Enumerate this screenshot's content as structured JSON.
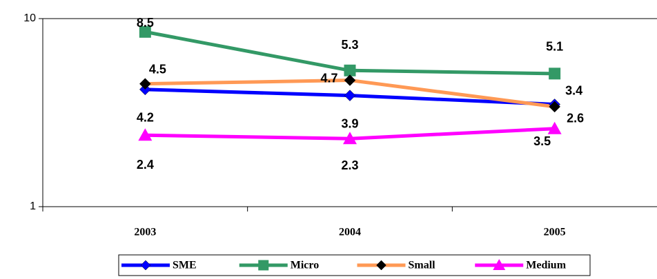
{
  "chart_data": {
    "type": "line",
    "categories": [
      "2003",
      "2004",
      "2005"
    ],
    "series": [
      {
        "name": "SME",
        "color": "#0000ff",
        "marker": "diamond",
        "marker_color": "#0000ff",
        "values": [
          4.2,
          3.9,
          3.5
        ]
      },
      {
        "name": "Micro",
        "color": "#339966",
        "marker": "square",
        "marker_color": "#339966",
        "values": [
          8.5,
          5.3,
          5.1
        ]
      },
      {
        "name": "Small",
        "color": "#ff9955",
        "marker": "diamond",
        "marker_color": "#000000",
        "values": [
          4.5,
          4.7,
          3.4
        ]
      },
      {
        "name": "Medium",
        "color": "#ff00ff",
        "marker": "triangle",
        "marker_color": "#ff00ff",
        "values": [
          2.4,
          2.3,
          2.6
        ]
      }
    ],
    "ylim": [
      1,
      10
    ],
    "yticks": [
      1,
      10
    ],
    "log_scale": true,
    "grid": false,
    "legend": "bottom"
  }
}
